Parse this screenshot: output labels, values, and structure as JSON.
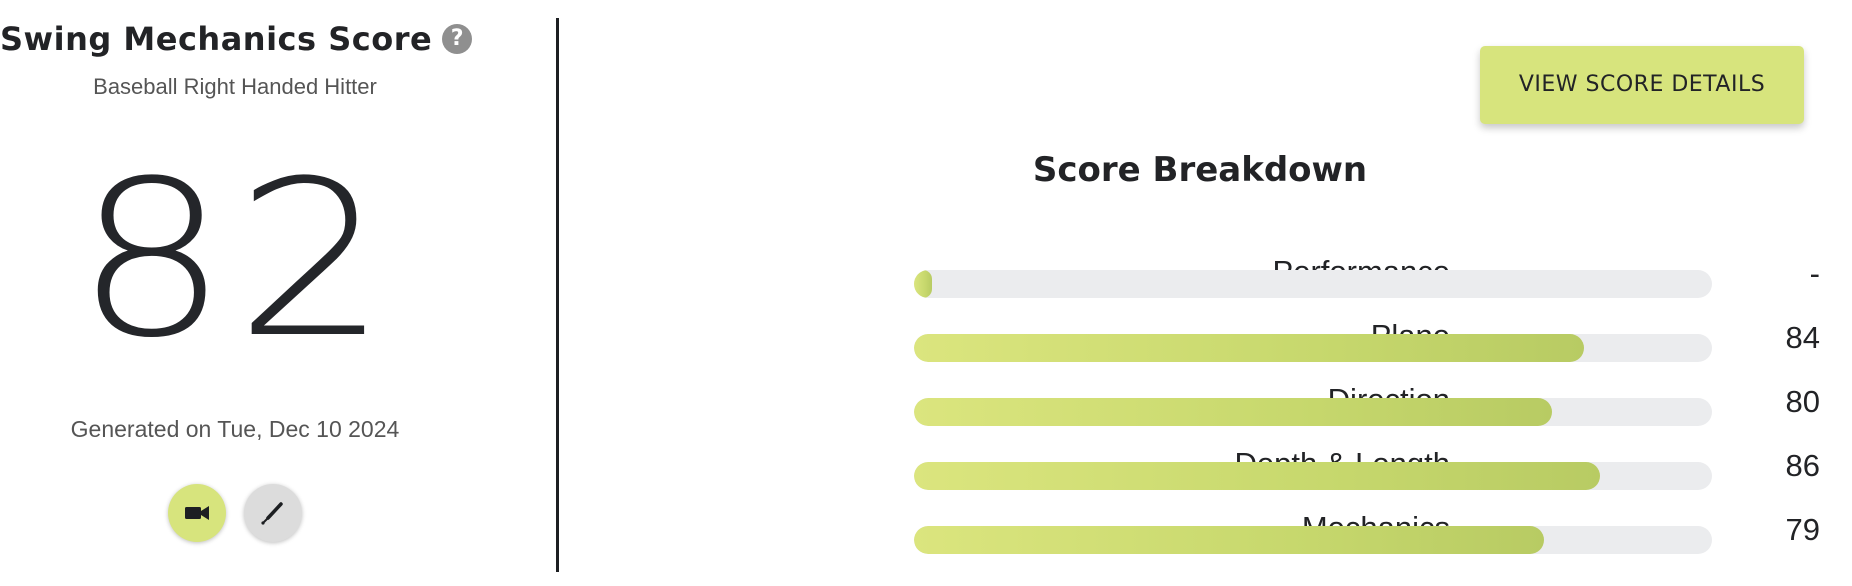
{
  "header": {
    "title": "Swing Mechanics Score",
    "subtitle": "Baseball Right Handed Hitter"
  },
  "score": {
    "value": "82"
  },
  "generated_text": "Generated on Tue, Dec 10 2024",
  "icons": {
    "help": "question-circle-icon",
    "video": "video-camera-icon",
    "bat": "baseball-bat-icon"
  },
  "colors": {
    "accent": "#d7e47d",
    "track": "#ebecee",
    "text": "#222326"
  },
  "view_details_label": "VIEW SCORE DETAILS",
  "breakdown": {
    "title": "Score Breakdown",
    "rows": [
      {
        "label": "Performance",
        "value": "-",
        "fill": 0.02
      },
      {
        "label": "Plane",
        "value": "84",
        "fill": 0.84
      },
      {
        "label": "Direction",
        "value": "80",
        "fill": 0.8
      },
      {
        "label": "Depth & Length",
        "value": "86",
        "fill": 0.86
      },
      {
        "label": "Mechanics",
        "value": "79",
        "fill": 0.79
      }
    ]
  }
}
